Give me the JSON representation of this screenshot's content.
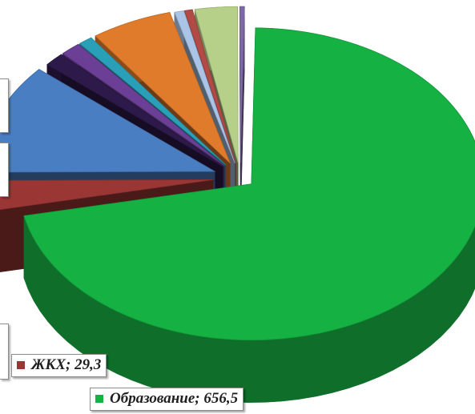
{
  "chart_data": {
    "type": "pie",
    "style": "3d-exploded",
    "slices": [
      {
        "name": "Образование",
        "value": 656.5,
        "color": "#16b143",
        "label": "Образование; 656,5",
        "labeled": true
      },
      {
        "name": "ЖКХ",
        "value": 29.3,
        "color": "#9a3735",
        "label": "ЖКХ; 29,3",
        "labeled": true
      },
      {
        "name": "",
        "value": 105,
        "color": "#4a7ec2",
        "label": "",
        "labeled": false
      },
      {
        "name": "",
        "value": 13,
        "color": "#2e1a4a",
        "label": "",
        "labeled": false
      },
      {
        "name": "",
        "value": 13,
        "color": "#6a3f95",
        "label": "",
        "labeled": false
      },
      {
        "name": "",
        "value": 9,
        "color": "#2aa0b8",
        "label": "",
        "labeled": false
      },
      {
        "name": "",
        "value": 52,
        "color": "#e07b2c",
        "label": "",
        "labeled": false
      },
      {
        "name": "",
        "value": 6,
        "color": "#a9c4e6",
        "label": "",
        "labeled": false
      },
      {
        "name": "",
        "value": 5,
        "color": "#b24a45",
        "label": "",
        "labeled": false
      },
      {
        "name": "",
        "value": 27,
        "color": "#b6d08a",
        "label": "",
        "labeled": false
      },
      {
        "name": "",
        "value": 3,
        "color": "#7e6aa3",
        "label": "",
        "labeled": false
      }
    ]
  }
}
